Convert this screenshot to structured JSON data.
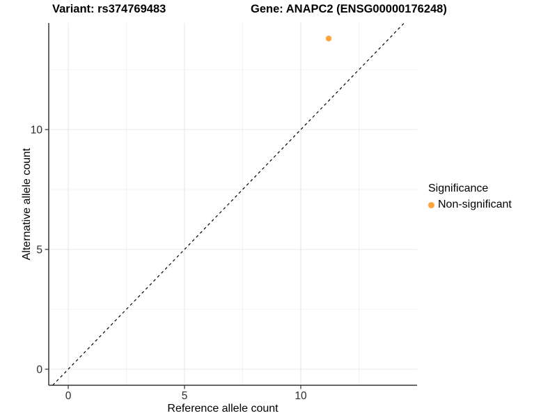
{
  "titles": {
    "variant": "Variant: rs374769483",
    "gene": "Gene: ANAPC2 (ENSG00000176248)"
  },
  "axes": {
    "x": {
      "label": "Reference allele count",
      "ticks": [
        0,
        5,
        10
      ],
      "minor_ticks": [
        2.5,
        7.5,
        12.5
      ]
    },
    "y": {
      "label": "Alternative allele count",
      "ticks": [
        0,
        5,
        10
      ],
      "minor_ticks": [
        2.5,
        7.5,
        12.5
      ]
    }
  },
  "legend": {
    "title": "Significance",
    "items": [
      {
        "label": "Non-significant",
        "color": "#FFA33C"
      }
    ]
  },
  "colors": {
    "axis_line": "#333333",
    "tick_mark": "#333333",
    "tick_label": "#2b2b2b",
    "grid_major": "#e8e8e8",
    "grid_minor": "#f3f3f3",
    "reference_line": "#000000",
    "point": "#FFA33C"
  },
  "chart_data": {
    "type": "scatter",
    "title": "Variant: rs374769483 | Gene: ANAPC2 (ENSG00000176248)",
    "xlabel": "Reference allele count",
    "ylabel": "Alternative allele count",
    "xlim": [
      -0.84,
      15.0
    ],
    "ylim": [
      -0.67,
      14.45
    ],
    "x_ticks": [
      0,
      5,
      10
    ],
    "y_ticks": [
      0,
      5,
      10
    ],
    "x_minor_ticks": [
      2.5,
      7.5,
      12.5
    ],
    "y_minor_ticks": [
      2.5,
      7.5,
      12.5
    ],
    "grid": "major and minor gridlines, very light gray, on white background",
    "legend_position": "right",
    "series": [
      {
        "name": "Non-significant",
        "color": "#FFA33C",
        "marker": "circle",
        "points": [
          {
            "x": 11.2,
            "y": 13.8
          }
        ]
      }
    ],
    "reference_line": {
      "type": "identity y=x",
      "style": "dashed",
      "color": "#000000"
    }
  }
}
